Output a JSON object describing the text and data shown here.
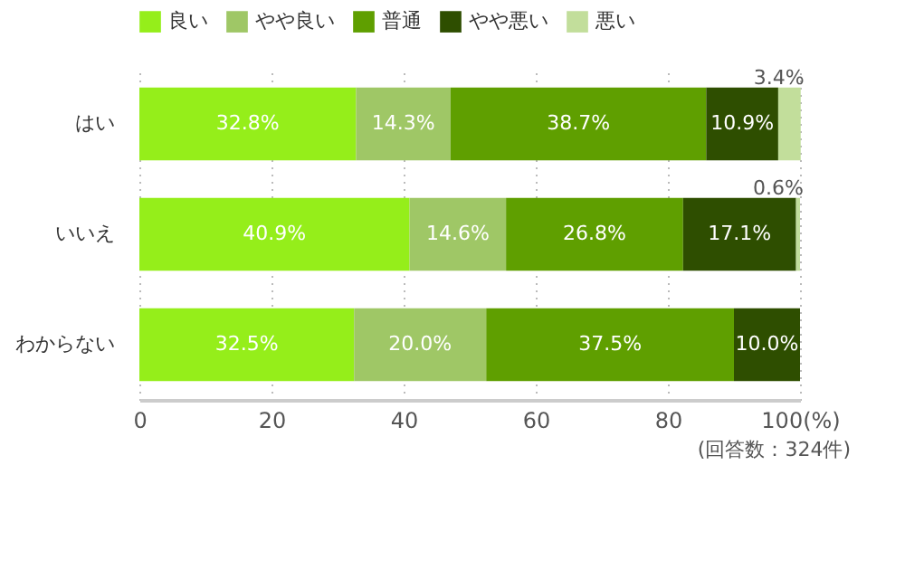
{
  "chart_data": {
    "type": "bar",
    "orientation": "horizontal",
    "stacked": true,
    "categories": [
      "はい",
      "いいえ",
      "わからない"
    ],
    "series": [
      {
        "name": "良い",
        "color": "#95ee1a",
        "values": [
          32.8,
          40.9,
          32.5
        ],
        "value_labels": [
          "32.8%",
          "40.9%",
          "32.5%"
        ]
      },
      {
        "name": "やや良い",
        "color": "#9fc766",
        "values": [
          14.3,
          14.6,
          20.0
        ],
        "value_labels": [
          "14.3%",
          "14.6%",
          "20.0%"
        ]
      },
      {
        "name": "普通",
        "color": "#5f9f00",
        "values": [
          38.7,
          26.8,
          37.5
        ],
        "value_labels": [
          "38.7%",
          "26.8%",
          "37.5%"
        ]
      },
      {
        "name": "やや悪い",
        "color": "#2e4e00",
        "values": [
          10.9,
          17.1,
          10.0
        ],
        "value_labels": [
          "10.9%",
          "17.1%",
          "10.0%"
        ]
      },
      {
        "name": "悪い",
        "color": "#c2de9b",
        "values": [
          3.4,
          0.6,
          0
        ],
        "value_labels": [
          "3.4%",
          "0.6%",
          null
        ]
      }
    ],
    "xlim": [
      0,
      100
    ],
    "xticks": [
      0,
      20,
      40,
      60,
      80,
      {
        "value": 100,
        "label": "100(%)"
      }
    ],
    "grid": "x",
    "legend": "top",
    "annotations": [
      "(回答数：324件)"
    ]
  }
}
